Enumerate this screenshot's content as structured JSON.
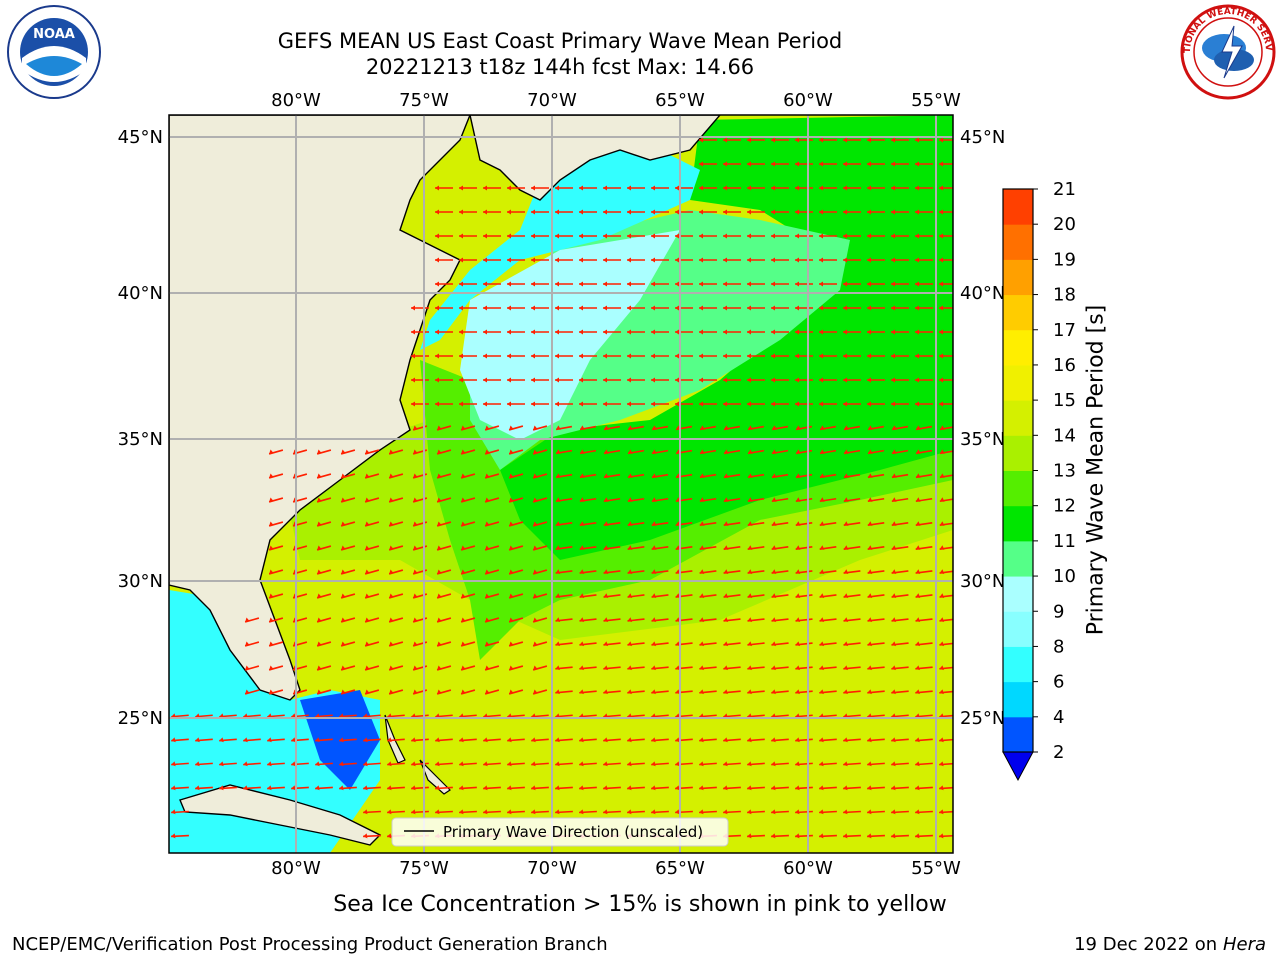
{
  "header": {
    "title_line1": "GEFS MEAN US East Coast Primary Wave Mean Period",
    "title_line2": "20221213 t18z 144h fcst   Max: 14.66"
  },
  "logos": {
    "noaa_text": "NOAA",
    "nws_ring_text": "NATIONAL WEATHER SERVICE"
  },
  "map": {
    "lon_labels": [
      "80°W",
      "75°W",
      "70°W",
      "65°W",
      "60°W",
      "55°W"
    ],
    "lat_labels": [
      "45°N",
      "40°N",
      "35°N",
      "30°N",
      "25°N"
    ],
    "legend_label": "Primary Wave Direction (unscaled)",
    "arrow_color": "#ff2000",
    "land_color": "#efedda"
  },
  "colorbar": {
    "label": "Primary Wave Mean Period [s]",
    "ticks": [
      "2",
      "4",
      "6",
      "8",
      "9",
      "10",
      "11",
      "12",
      "13",
      "14",
      "15",
      "16",
      "17",
      "18",
      "19",
      "20",
      "21"
    ],
    "colors": [
      "#0055ff",
      "#00d8ff",
      "#33ffff",
      "#88ffff",
      "#aaffff",
      "#55ff88",
      "#00e600",
      "#55ee00",
      "#aaf000",
      "#d4f000",
      "#f0f000",
      "#ffee00",
      "#ffcc00",
      "#ffa000",
      "#ff7000",
      "#ff4000",
      "#ff1000"
    ]
  },
  "footer": {
    "note": "Sea Ice Concentration > 15% is shown in pink to yellow",
    "branch": "NCEP/EMC/Verification Post Processing Product Generation Branch",
    "date": "19 Dec 2022 on",
    "host": "Hera"
  }
}
